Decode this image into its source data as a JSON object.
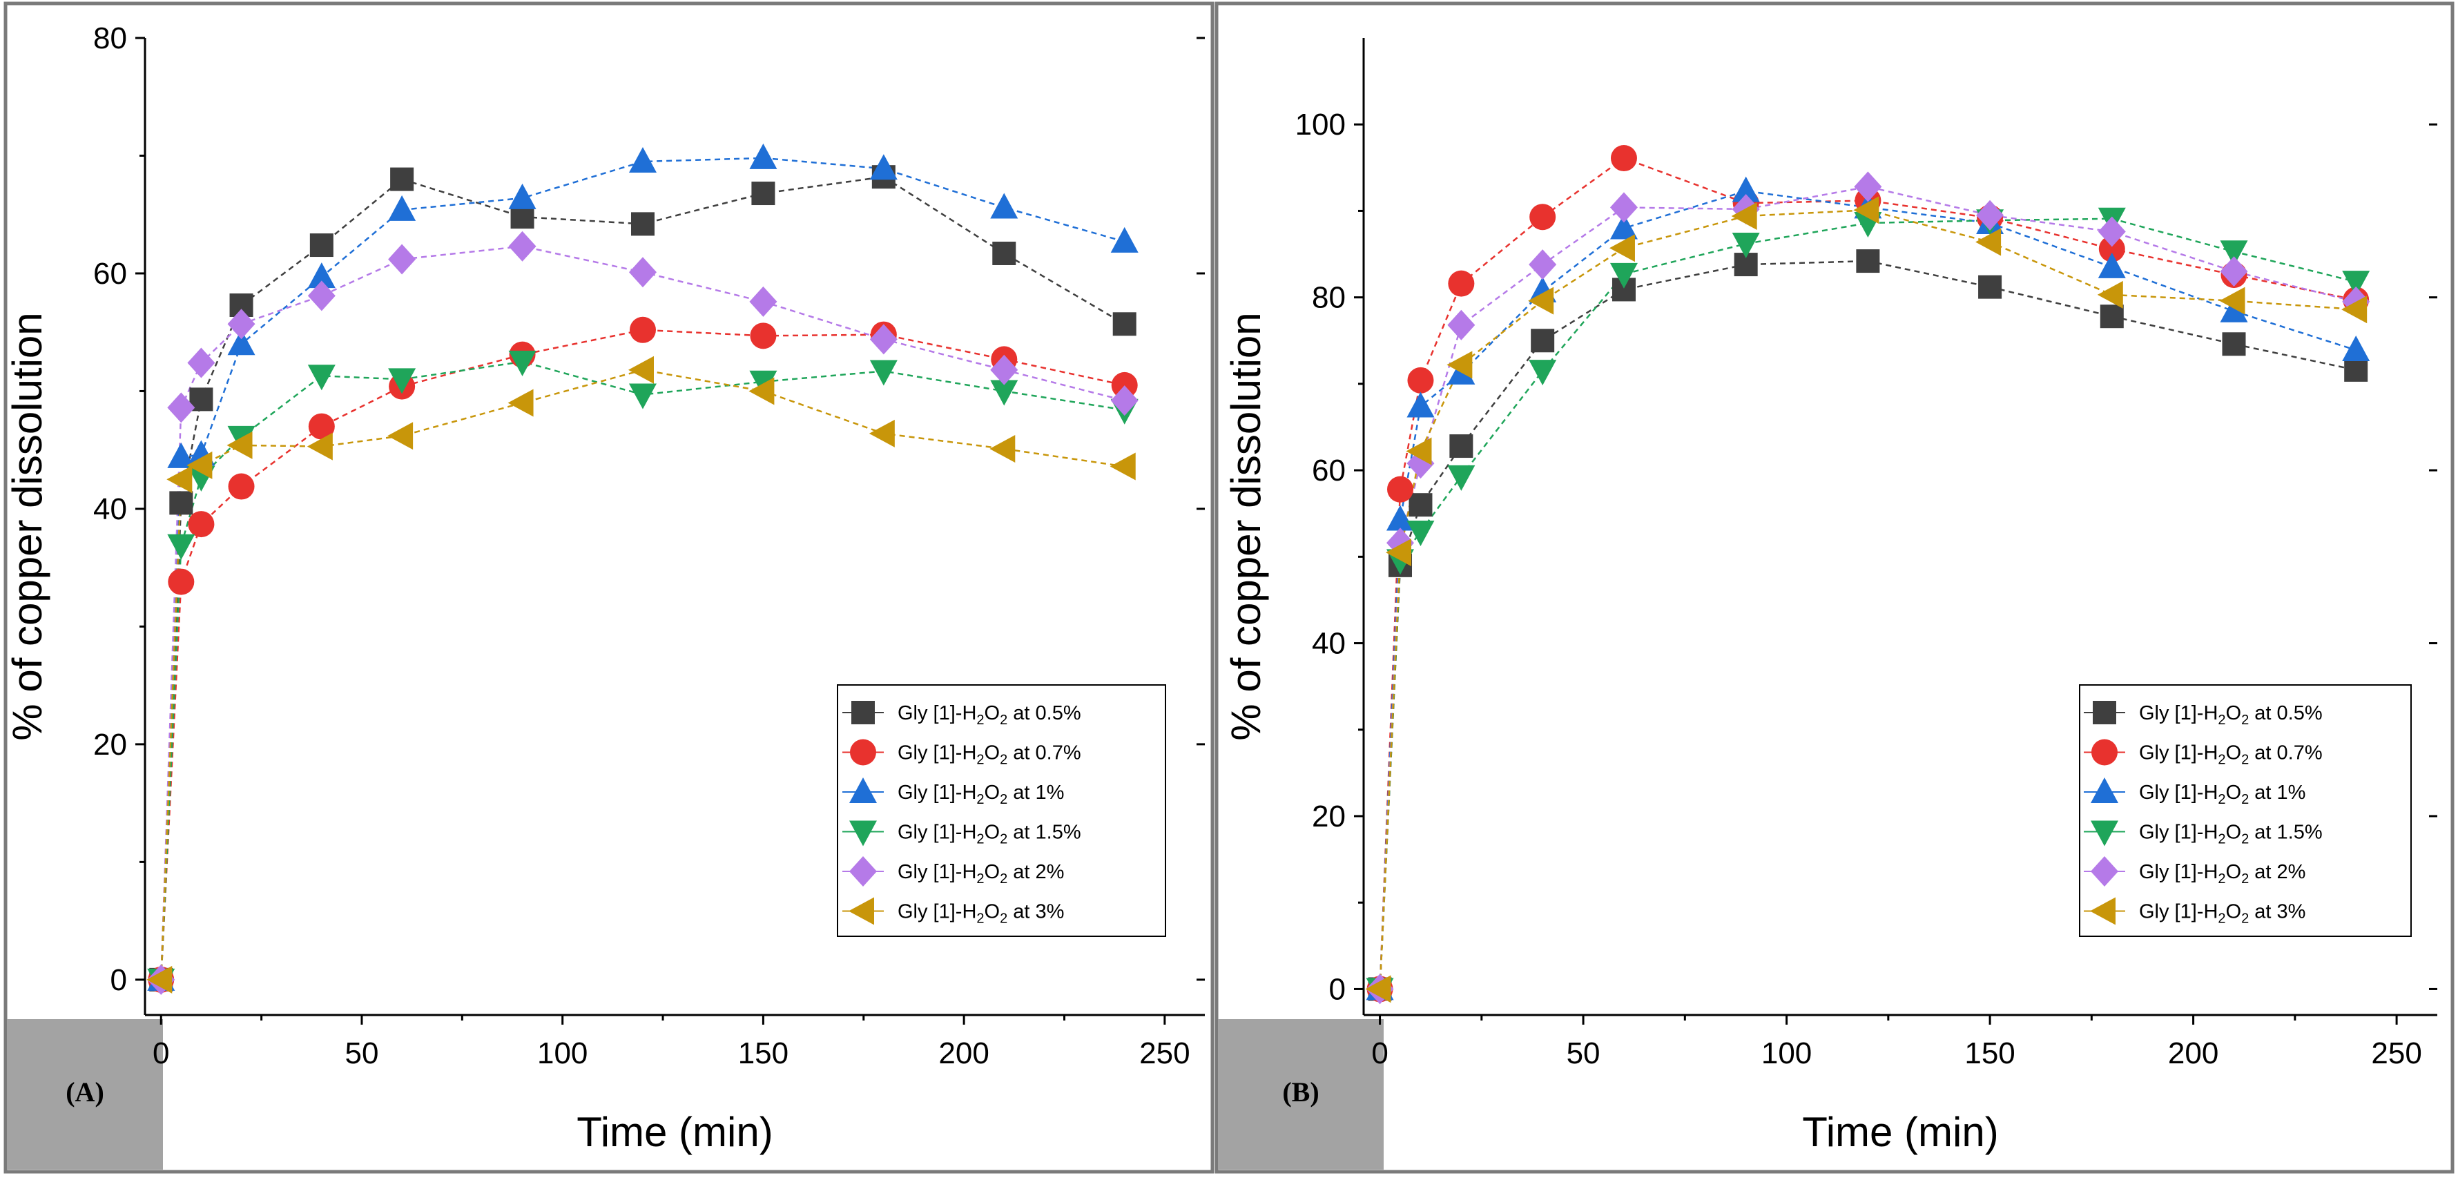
{
  "legend_labels": [
    {
      "prefix": "Gly [1]-H",
      "sub1": "2",
      "mid": "O",
      "sub2": "2",
      "suffix": "  at 0.5%"
    },
    {
      "prefix": "Gly [1]-H",
      "sub1": "2",
      "mid": "O",
      "sub2": "2",
      "suffix": " at 0.7%"
    },
    {
      "prefix": "Gly [1]-H",
      "sub1": "2",
      "mid": "O",
      "sub2": "2",
      "suffix": " at 1%"
    },
    {
      "prefix": "Gly [1]-H",
      "sub1": "2",
      "mid": "O",
      "sub2": "2",
      "suffix": " at 1.5%"
    },
    {
      "prefix": "Gly [1]-H",
      "sub1": "2",
      "mid": "O",
      "sub2": "2",
      "suffix": " at 2%"
    },
    {
      "prefix": "Gly [1]-H",
      "sub1": "2",
      "mid": "O",
      "sub2": "2",
      "suffix": " at 3%"
    }
  ],
  "series_style": [
    {
      "color": "#3f3f3f",
      "marker": "square",
      "dash": "8,6"
    },
    {
      "color": "#e8322e",
      "marker": "circle",
      "dash": "8,6"
    },
    {
      "color": "#1f6fd6",
      "marker": "triangle-up",
      "dash": "8,6"
    },
    {
      "color": "#1fa55a",
      "marker": "triangle-down",
      "dash": "8,6"
    },
    {
      "color": "#b57ae8",
      "marker": "diamond",
      "dash": "8,6"
    },
    {
      "color": "#c8960a",
      "marker": "triangle-left",
      "dash": "8,6"
    }
  ],
  "chart_data": [
    {
      "type": "line",
      "panel_label": "(A)",
      "xlabel": "Time (min)",
      "ylabel": "% of copper dissolution",
      "xlim": [
        -4,
        260
      ],
      "ylim": [
        -3,
        80
      ],
      "xticks": [
        0,
        50,
        100,
        150,
        200,
        250
      ],
      "yticks": [
        0,
        20,
        40,
        60,
        80
      ],
      "legend_position": "lower-right",
      "x": [
        0,
        5,
        10,
        20,
        40,
        60,
        90,
        120,
        150,
        180,
        210,
        240
      ],
      "series": [
        {
          "name": "Gly [1]-H2O2 at 0.5%",
          "values": [
            0,
            40.5,
            49.3,
            57.3,
            62.4,
            68.0,
            64.8,
            64.2,
            66.8,
            68.2,
            61.7,
            55.7
          ]
        },
        {
          "name": "Gly [1]-H2O2 at 0.7%",
          "values": [
            0,
            33.8,
            38.7,
            41.9,
            47.0,
            50.4,
            53.1,
            55.2,
            54.7,
            54.8,
            52.7,
            50.5
          ]
        },
        {
          "name": "Gly [1]-H2O2 at 1%",
          "values": [
            0,
            44.4,
            44.6,
            54.0,
            59.7,
            65.4,
            66.4,
            69.5,
            69.8,
            68.9,
            65.6,
            62.7
          ]
        },
        {
          "name": "Gly [1]-H2O2 at 1.5%",
          "values": [
            0,
            36.9,
            42.7,
            46.1,
            51.3,
            51.0,
            52.5,
            49.7,
            50.8,
            51.7,
            50.0,
            48.4
          ]
        },
        {
          "name": "Gly [1]-H2O2 at 2%",
          "values": [
            0,
            48.6,
            52.4,
            55.7,
            58.1,
            61.2,
            62.3,
            60.1,
            57.6,
            54.4,
            51.8,
            49.2
          ]
        },
        {
          "name": "Gly [1]-H2O2 at 3%",
          "values": [
            0,
            42.5,
            43.7,
            45.4,
            45.3,
            46.2,
            49.0,
            51.8,
            50.0,
            46.4,
            45.1,
            43.6
          ]
        }
      ]
    },
    {
      "type": "line",
      "panel_label": "(B)",
      "xlabel": "Time (min)",
      "ylabel": "% of copper dissolution",
      "xlim": [
        -4,
        260
      ],
      "ylim": [
        -3,
        110
      ],
      "xticks": [
        0,
        50,
        100,
        150,
        200,
        250
      ],
      "yticks": [
        0,
        20,
        40,
        60,
        80,
        100
      ],
      "legend_position": "lower-right",
      "x": [
        0,
        5,
        10,
        20,
        40,
        60,
        90,
        120,
        150,
        180,
        210,
        240
      ],
      "series": [
        {
          "name": "Gly [1]-H2O2 at 0.5%",
          "values": [
            0,
            49.0,
            56.0,
            62.8,
            75.0,
            80.9,
            83.8,
            84.2,
            81.2,
            77.8,
            74.6,
            71.6
          ]
        },
        {
          "name": "Gly [1]-H2O2 at 0.7%",
          "values": [
            0,
            57.8,
            70.4,
            81.6,
            89.3,
            96.1,
            90.9,
            91.2,
            89.2,
            85.6,
            82.6,
            79.7
          ]
        },
        {
          "name": "Gly [1]-H2O2 at 1%",
          "values": [
            0,
            54.3,
            67.4,
            71.2,
            80.7,
            88.0,
            92.3,
            90.4,
            88.6,
            83.5,
            78.4,
            73.9
          ]
        },
        {
          "name": "Gly [1]-H2O2 at 1.5%",
          "values": [
            0,
            49.6,
            52.9,
            59.3,
            71.5,
            82.7,
            86.2,
            88.6,
            88.9,
            89.1,
            85.3,
            81.8
          ]
        },
        {
          "name": "Gly [1]-H2O2 at 2%",
          "values": [
            0,
            51.6,
            60.8,
            76.8,
            83.8,
            90.4,
            90.2,
            92.8,
            89.5,
            87.6,
            83.0,
            79.5
          ]
        },
        {
          "name": "Gly [1]-H2O2 at 3%",
          "values": [
            0,
            50.5,
            62.2,
            72.2,
            79.6,
            85.7,
            89.4,
            90.1,
            86.4,
            80.3,
            79.6,
            78.6
          ]
        }
      ]
    }
  ]
}
